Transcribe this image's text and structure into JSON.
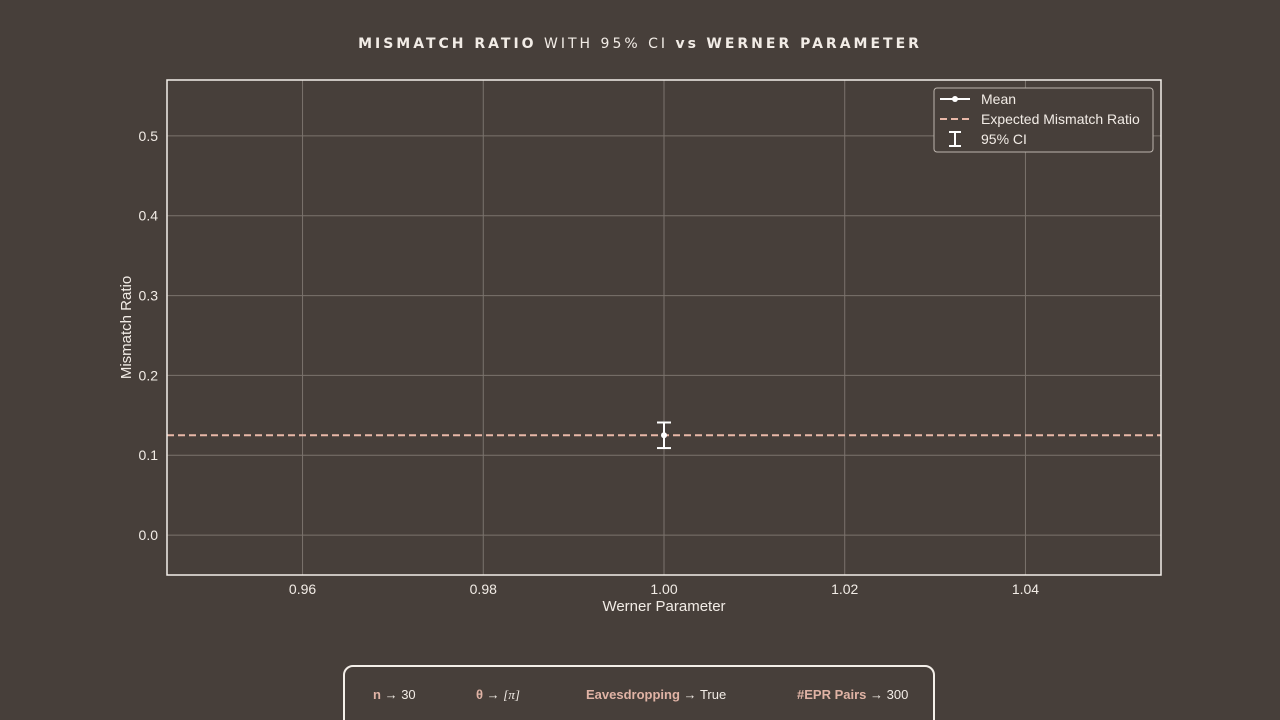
{
  "title": {
    "part1": "MISMATCH RATIO",
    "part2": "WITH 95% CI",
    "part3": "vs",
    "part4": "WERNER PARAMETER"
  },
  "colors": {
    "background": "#473f3a",
    "axes_frame": "#f4efe9",
    "grid": "#7b736d",
    "text": "#f2ece6",
    "mean": "#ffffff",
    "expected": "#e8b8a8",
    "param_key": "#e0b3a5"
  },
  "chart_data": {
    "type": "scatter",
    "title": "MISMATCH RATIO WITH 95% CI vs WERNER PARAMETER",
    "xlabel": "Werner Parameter",
    "ylabel": "Mismatch Ratio",
    "xlim": [
      0.945,
      1.055
    ],
    "ylim": [
      -0.05,
      0.57
    ],
    "xticks": [
      0.96,
      0.98,
      1.0,
      1.02,
      1.04
    ],
    "xtick_labels": [
      "0.96",
      "0.98",
      "1.00",
      "1.02",
      "1.04"
    ],
    "yticks": [
      0.0,
      0.1,
      0.2,
      0.3,
      0.4,
      0.5
    ],
    "ytick_labels": [
      "0.0",
      "0.1",
      "0.2",
      "0.3",
      "0.4",
      "0.5"
    ],
    "grid": true,
    "legend_position": "top-right",
    "series": [
      {
        "name": "Mean",
        "kind": "line-marker",
        "x": [
          1.0
        ],
        "y": [
          0.125
        ]
      },
      {
        "name": "Expected Mismatch Ratio",
        "kind": "dashed-horizontal",
        "y": 0.125
      },
      {
        "name": "95% CI",
        "kind": "errorbar",
        "x": [
          1.0
        ],
        "lower": [
          0.109
        ],
        "upper": [
          0.141
        ]
      }
    ]
  },
  "params": [
    {
      "key": "n",
      "arrow": "→",
      "value": "30"
    },
    {
      "key": "θ",
      "arrow": "→",
      "value": "[π]"
    },
    {
      "key": "Eavesdropping",
      "arrow": "→",
      "value": "True"
    },
    {
      "key": "#EPR Pairs",
      "arrow": "→",
      "value": "300"
    }
  ]
}
